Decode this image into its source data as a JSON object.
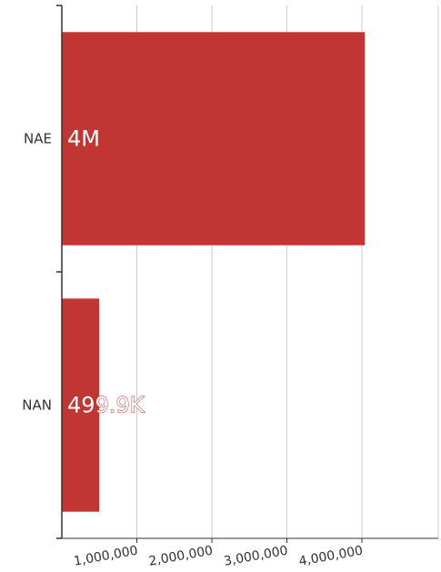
{
  "chart_data": {
    "type": "bar",
    "orientation": "horizontal",
    "categories": [
      "NAE",
      "NAN"
    ],
    "values": [
      4040000,
      499900
    ],
    "data_labels": [
      "4M",
      "499.9K"
    ],
    "x_ticks": [
      1000000,
      2000000,
      3000000,
      4000000
    ],
    "x_tick_labels": [
      "1,000,000",
      "2,000,000",
      "3,000,000",
      "4,000,000"
    ],
    "xlim": [
      0,
      5000000
    ],
    "title": "",
    "xlabel": "",
    "ylabel": "",
    "grid": "vertical",
    "legend": "none",
    "colors": {
      "bar": "#c13532",
      "grid": "#cccccc",
      "axis": "#333333",
      "label_inside": "#ffffff",
      "label_outside_stroke": "#c13532"
    }
  }
}
